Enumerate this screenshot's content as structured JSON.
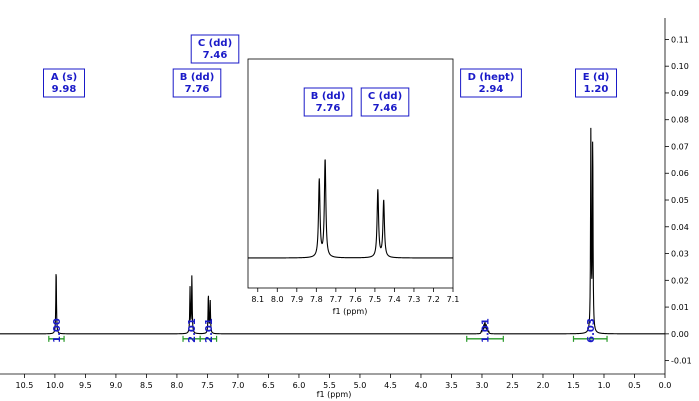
{
  "chart_data": {
    "type": "line",
    "title": "",
    "xlabel": "f1 (ppm)",
    "ylabel": "",
    "x_reversed": true,
    "xlim": [
      0.0,
      10.9
    ],
    "ylim": [
      -0.015,
      0.118
    ],
    "x_ticks": [
      "10.5",
      "10.0",
      "9.5",
      "9.0",
      "8.5",
      "8.0",
      "7.5",
      "7.0",
      "6.5",
      "6.0",
      "5.5",
      "5.0",
      "4.5",
      "4.0",
      "3.5",
      "3.0",
      "2.5",
      "2.0",
      "1.5",
      "1.0",
      "0.5",
      "0.0"
    ],
    "y_ticks": [
      "-0.01",
      "0.00",
      "0.01",
      "0.02",
      "0.03",
      "0.04",
      "0.05",
      "0.06",
      "0.07",
      "0.08",
      "0.09",
      "0.10",
      "0.11"
    ],
    "y_axis_side": "right",
    "peaks": [
      {
        "label": "A (s)",
        "shift": "9.98",
        "lines": [
          {
            "x": 9.98,
            "h": 0.0245
          }
        ]
      },
      {
        "label": "B (dd)",
        "shift": "7.76",
        "lines": [
          {
            "x": 7.785,
            "h": 0.017
          },
          {
            "x": 7.755,
            "h": 0.0215
          }
        ]
      },
      {
        "label": "C (dd)",
        "shift": "7.46",
        "lines": [
          {
            "x": 7.485,
            "h": 0.0148
          },
          {
            "x": 7.455,
            "h": 0.0125
          }
        ]
      },
      {
        "label": "D (hept)",
        "shift": "2.94",
        "lines": [
          {
            "x": 3.01,
            "h": 0.0008
          },
          {
            "x": 2.99,
            "h": 0.0018
          },
          {
            "x": 2.97,
            "h": 0.003
          },
          {
            "x": 2.95,
            "h": 0.004
          },
          {
            "x": 2.93,
            "h": 0.003
          },
          {
            "x": 2.91,
            "h": 0.0018
          },
          {
            "x": 2.89,
            "h": 0.0008
          }
        ]
      },
      {
        "label": "E (d)",
        "shift": "1.20",
        "lines": [
          {
            "x": 1.215,
            "h": 0.0755
          },
          {
            "x": 1.185,
            "h": 0.0725
          }
        ]
      }
    ],
    "integrals": [
      {
        "value": "1.00",
        "x_from": 10.1,
        "x_to": 9.85
      },
      {
        "value": "2.01",
        "x_from": 7.9,
        "x_to": 7.62
      },
      {
        "value": "2.01",
        "x_from": 7.62,
        "x_to": 7.35
      },
      {
        "value": "1.01",
        "x_from": 3.25,
        "x_to": 2.65
      },
      {
        "value": "6.03",
        "x_from": 1.5,
        "x_to": 0.95
      }
    ],
    "inset": {
      "xlabel": "f1 (ppm)",
      "xlim": [
        7.1,
        8.15
      ],
      "x_ticks": [
        "8.1",
        "8.0",
        "7.9",
        "7.8",
        "7.7",
        "7.6",
        "7.5",
        "7.4",
        "7.3",
        "7.2",
        "7.1"
      ],
      "labels": [
        {
          "label": "B (dd)",
          "shift": "7.76"
        },
        {
          "label": "C (dd)",
          "shift": "7.46"
        }
      ]
    }
  }
}
